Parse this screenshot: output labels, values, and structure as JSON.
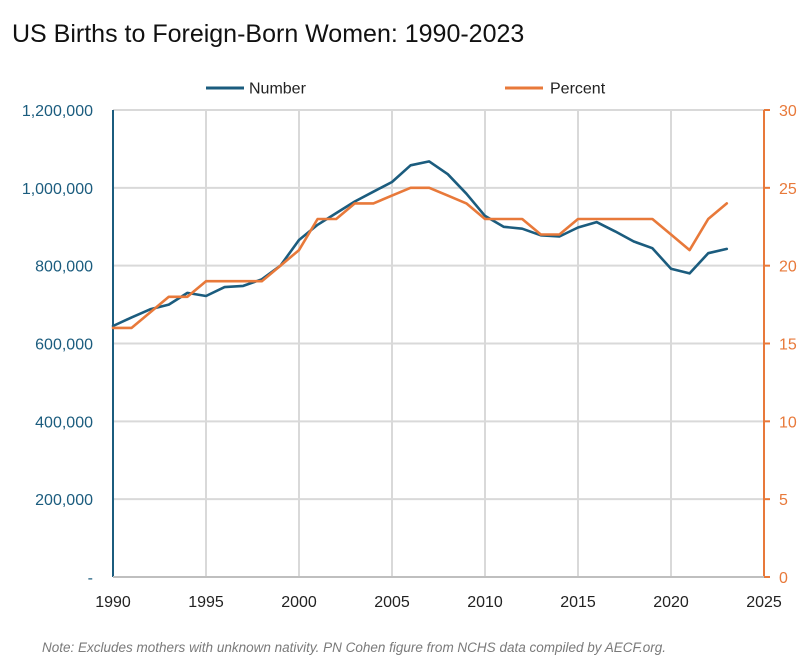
{
  "colors": {
    "number_series": "#1b5c7e",
    "percent_series": "#e8793a",
    "grid": "#d9d9d9",
    "title": "#111111",
    "note": "#7a7a7a"
  },
  "chart_data": {
    "type": "line",
    "title": "US Births to Foreign-Born Women: 1990-2023",
    "note": "Note: Excludes mothers with unknown nativity. PN Cohen figure from NCHS data compiled by AECF.org.",
    "legend_position": "top-center",
    "grid": true,
    "x": [
      1990,
      1991,
      1992,
      1993,
      1994,
      1995,
      1996,
      1997,
      1998,
      1999,
      2000,
      2001,
      2002,
      2003,
      2004,
      2005,
      2006,
      2007,
      2008,
      2009,
      2010,
      2011,
      2012,
      2013,
      2014,
      2015,
      2016,
      2017,
      2018,
      2019,
      2020,
      2021,
      2022,
      2023
    ],
    "xlim": [
      1990,
      2025
    ],
    "x_ticks": [
      "1990",
      "1995",
      "2000",
      "2005",
      "2010",
      "2015",
      "2020",
      "2025"
    ],
    "ylim_left": [
      0,
      1200000
    ],
    "y_left_ticks": [
      "-",
      "200,000",
      "400,000",
      "600,000",
      "800,000",
      "1,000,000",
      "1,200,000"
    ],
    "ylim_right": [
      0,
      30
    ],
    "y_right_ticks": [
      "0",
      "5",
      "10",
      "15",
      "20",
      "25",
      "30"
    ],
    "series": [
      {
        "name": "Number",
        "axis": "left",
        "color": "#1b5c7e",
        "values": [
          645000,
          667000,
          688000,
          700000,
          730000,
          722000,
          745000,
          748000,
          765000,
          800000,
          866000,
          905000,
          935000,
          965000,
          990000,
          1015000,
          1058000,
          1068000,
          1035000,
          985000,
          928000,
          900000,
          895000,
          878000,
          875000,
          898000,
          912000,
          888000,
          862000,
          845000,
          792000,
          780000,
          832000,
          843000
        ]
      },
      {
        "name": "Percent",
        "axis": "right",
        "color": "#e8793a",
        "values": [
          16,
          16,
          17,
          18,
          18,
          19,
          19,
          19,
          19,
          20,
          21,
          23,
          23,
          24,
          24,
          24.5,
          25,
          25,
          24.5,
          24,
          23,
          23,
          23,
          22,
          22,
          23,
          23,
          23,
          23,
          23,
          22,
          21,
          23,
          24
        ]
      }
    ]
  }
}
